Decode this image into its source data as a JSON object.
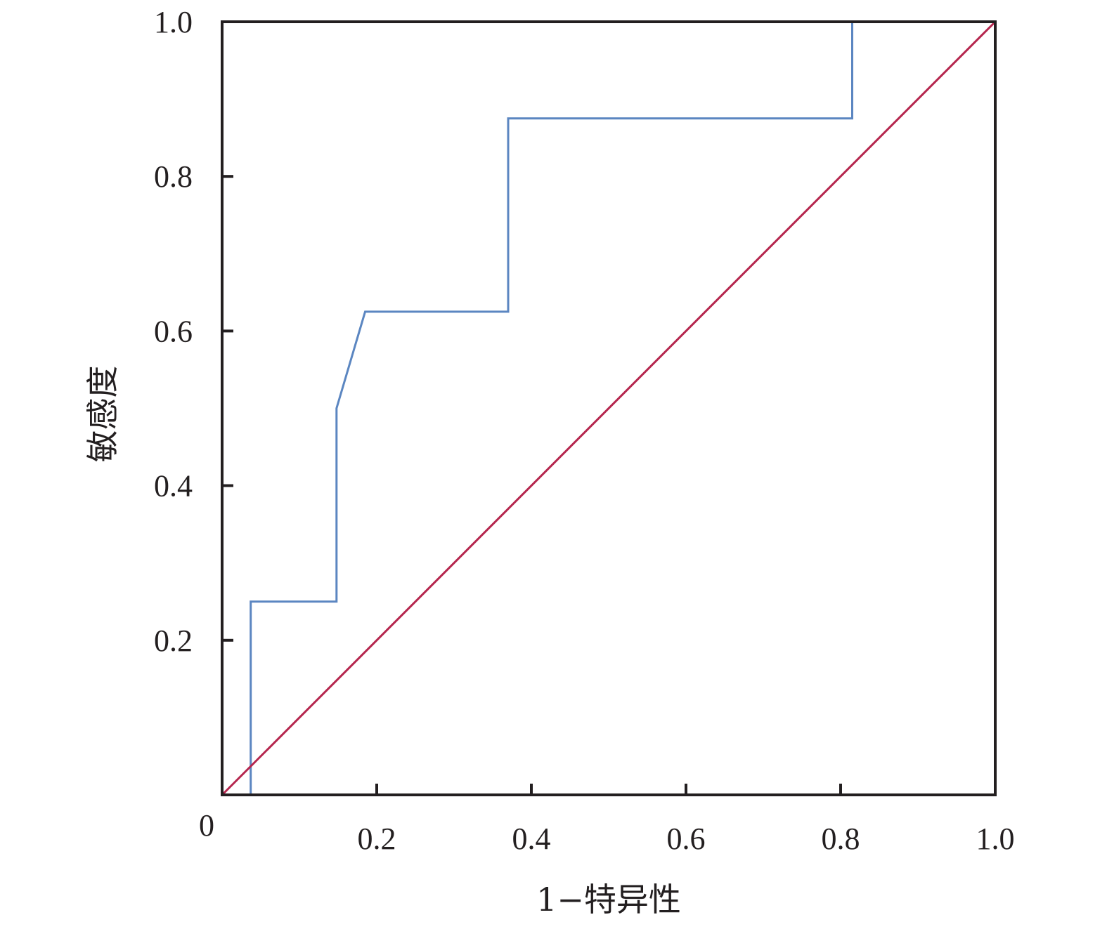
{
  "chart_data": {
    "type": "line",
    "title": "",
    "xlabel": "1−特异性",
    "ylabel": "敏感度",
    "xlim": [
      0,
      1
    ],
    "ylim": [
      0,
      1
    ],
    "grid": false,
    "origin_label": "0",
    "x_ticks": [
      {
        "value": 0.2,
        "label": "0.2"
      },
      {
        "value": 0.4,
        "label": "0.4"
      },
      {
        "value": 0.6,
        "label": "0.6"
      },
      {
        "value": 0.8,
        "label": "0.8"
      },
      {
        "value": 1.0,
        "label": "1.0"
      }
    ],
    "y_ticks": [
      {
        "value": 0.2,
        "label": "0.2"
      },
      {
        "value": 0.4,
        "label": "0.4"
      },
      {
        "value": 0.6,
        "label": "0.6"
      },
      {
        "value": 0.8,
        "label": "0.8"
      },
      {
        "value": 1.0,
        "label": "1.0"
      }
    ],
    "series": [
      {
        "color": "#5b86c1",
        "points": [
          [
            0,
            0
          ],
          [
            0.037,
            0
          ],
          [
            0.037,
            0.25
          ],
          [
            0.148,
            0.25
          ],
          [
            0.148,
            0.5
          ],
          [
            0.185,
            0.625
          ],
          [
            0.37,
            0.625
          ],
          [
            0.37,
            0.875
          ],
          [
            0.815,
            0.875
          ],
          [
            0.815,
            1.0
          ],
          [
            1.0,
            1.0
          ]
        ]
      },
      {
        "color": "#b5254d",
        "points": [
          [
            0,
            0
          ],
          [
            1,
            1
          ]
        ]
      }
    ]
  }
}
